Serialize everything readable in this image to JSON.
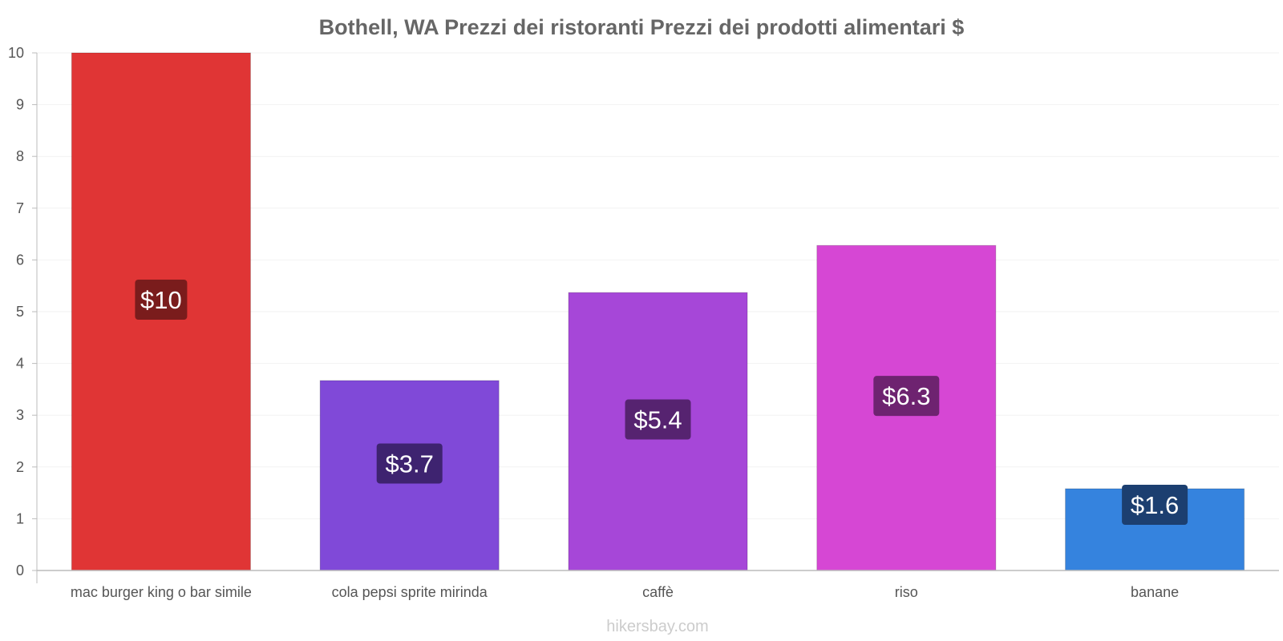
{
  "chart_data": {
    "type": "bar",
    "title": "Bothell, WA Prezzi dei ristoranti Prezzi dei prodotti alimentari $",
    "xlabel": "",
    "ylabel": "",
    "ylim": [
      0,
      10
    ],
    "yticks": [
      "0",
      "1",
      "2",
      "3",
      "4",
      "5",
      "6",
      "7",
      "8",
      "9",
      "10"
    ],
    "categories": [
      "mac burger king o bar simile",
      "cola pepsi sprite mirinda",
      "caffè",
      "riso",
      "banane"
    ],
    "values": [
      10,
      3.67,
      5.37,
      6.28,
      1.58
    ],
    "value_labels": [
      "$10",
      "$3.7",
      "$5.4",
      "$6.3",
      "$1.6"
    ],
    "colors": [
      "#e03535",
      "#8049d8",
      "#a647d8",
      "#d647d4",
      "#3583de"
    ],
    "label_colors": [
      "#7a1c1c",
      "#3e2370",
      "#562370",
      "#6e2370",
      "#1c3f70"
    ],
    "grid": true,
    "legend": "none"
  },
  "source": "hikersbay.com"
}
